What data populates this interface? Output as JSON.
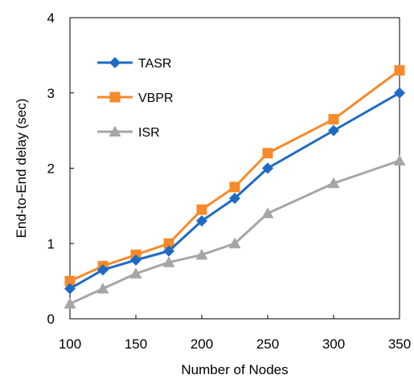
{
  "chart_data": {
    "type": "line",
    "title": "",
    "xlabel": "Number of Nodes",
    "ylabel": "End-to-End delay (sec)",
    "x": [
      100,
      125,
      150,
      175,
      200,
      225,
      250,
      300,
      350
    ],
    "xticks": [
      100,
      150,
      200,
      250,
      300,
      350
    ],
    "yticks": [
      0,
      1,
      2,
      3,
      4
    ],
    "xlim": [
      100,
      350
    ],
    "ylim": [
      0,
      4
    ],
    "grid": false,
    "legend_position": "top-left",
    "series": [
      {
        "name": "TASR",
        "color": "#1f6bc4",
        "marker": "diamond",
        "values": [
          0.4,
          0.65,
          0.78,
          0.9,
          1.3,
          1.6,
          2.0,
          2.5,
          3.0
        ]
      },
      {
        "name": "VBPR",
        "color": "#f78a2a",
        "marker": "square",
        "values": [
          0.5,
          0.7,
          0.85,
          1.0,
          1.45,
          1.75,
          2.2,
          2.65,
          3.3
        ]
      },
      {
        "name": "ISR",
        "color": "#a6a6a6",
        "marker": "triangle",
        "values": [
          0.2,
          0.4,
          0.6,
          0.75,
          0.85,
          1.0,
          1.4,
          1.8,
          2.1
        ]
      }
    ]
  }
}
